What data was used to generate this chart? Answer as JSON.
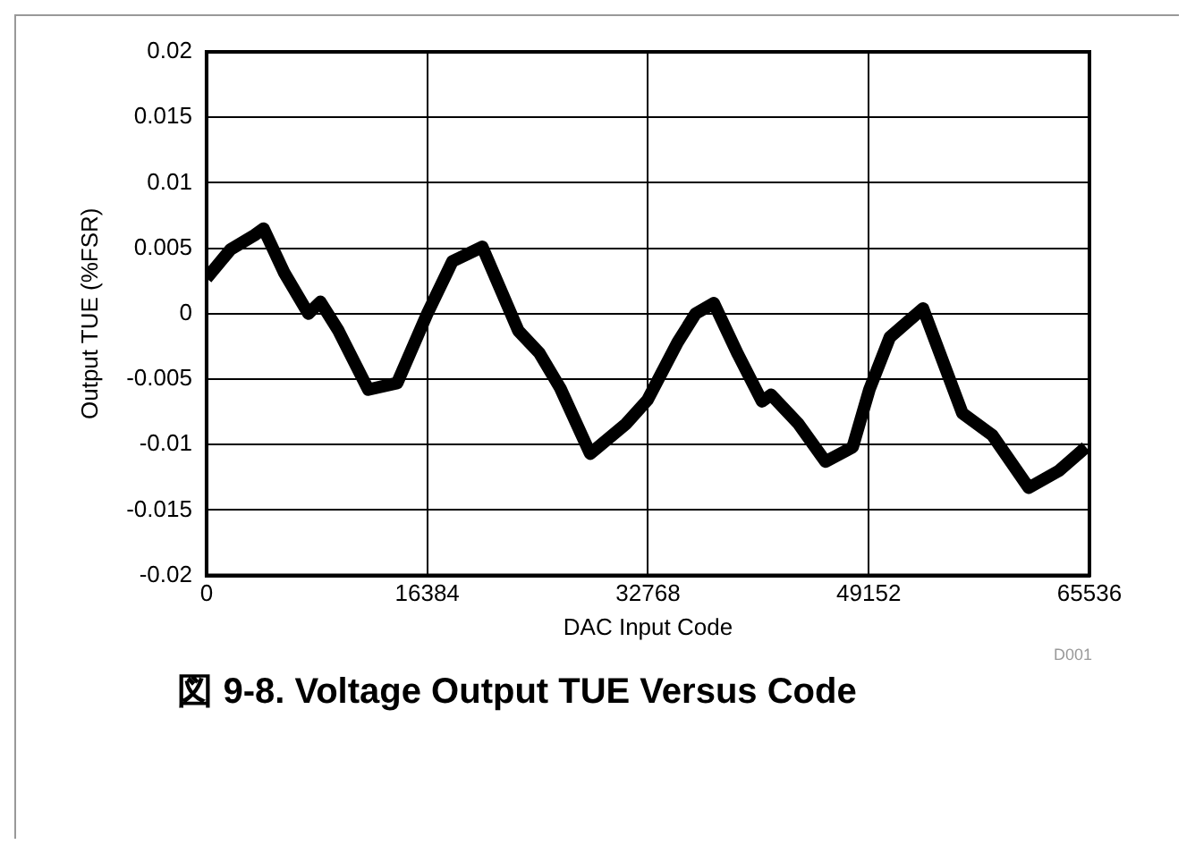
{
  "chart_data": {
    "type": "line",
    "title": "図 9-8. Voltage Output TUE Versus Code",
    "xlabel": "DAC Input Code",
    "ylabel": "Output TUE (%FSR)",
    "annotations": [
      "D001"
    ],
    "x": [
      0,
      1780,
      3560,
      4230,
      5780,
      7560,
      8450,
      9790,
      12000,
      14150,
      16384,
      18250,
      20470,
      23140,
      24700,
      26260,
      28480,
      31150,
      32725,
      34960,
      36300,
      37650,
      39440,
      41230,
      41900,
      43920,
      45940,
      47960,
      49200,
      50720,
      53180,
      56100,
      58340,
      61030,
      63270,
      65280
    ],
    "series": [
      {
        "color": "#000000",
        "values": [
          0.0027,
          0.0049,
          0.006,
          0.0065,
          0.0031,
          0,
          0.0009,
          -0.0013,
          -0.0058,
          -0.0053,
          0,
          0.004,
          0.0051,
          -0.0013,
          -0.003,
          -0.0057,
          -0.0107,
          -0.0084,
          -0.0066,
          -0.0022,
          0,
          0.0008,
          -0.0031,
          -0.0067,
          -0.0062,
          -0.0084,
          -0.0113,
          -0.0102,
          -0.0058,
          -0.0018,
          0.0004,
          -0.0076,
          -0.0093,
          -0.0133,
          -0.012,
          -0.0102
        ]
      }
    ],
    "xlim": [
      0,
      65536
    ],
    "xticks": [
      0,
      16384,
      32768,
      49152,
      65536
    ],
    "ylim": [
      -0.02,
      0.02
    ],
    "yticks": [
      -0.02,
      -0.015,
      -0.01,
      -0.005,
      0,
      0.005,
      0.01,
      0.015,
      0.02
    ],
    "grid": true,
    "legend": false,
    "marker": "none",
    "line_style": "solid"
  }
}
